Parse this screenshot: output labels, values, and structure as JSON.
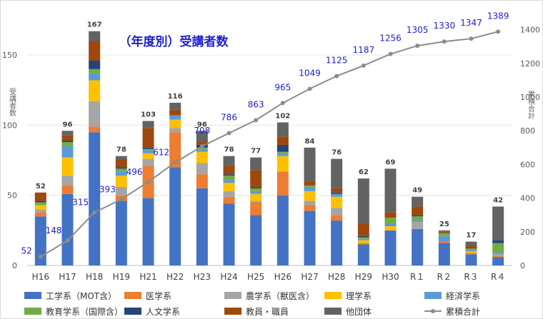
{
  "chart_data": {
    "type": "bar",
    "stacked": true,
    "title": "（年度別）受講者数",
    "ylabel": "受講者数",
    "y2label": "累積合計",
    "ylim": [
      0,
      175
    ],
    "y2lim": [
      0,
      1458
    ],
    "yticks": [
      0,
      50,
      100,
      150
    ],
    "y2ticks": [
      0,
      200,
      400,
      600,
      800,
      1000,
      1200,
      1400
    ],
    "categories": [
      "H16",
      "H17",
      "H18",
      "H19",
      "H21",
      "H22",
      "H23",
      "H24",
      "H25",
      "H26",
      "H27",
      "H28",
      "H29",
      "H30",
      "R１",
      "R２",
      "R３",
      "R４"
    ],
    "series": [
      {
        "name": "工学系（MOT含）",
        "color": "#4472c4",
        "values": [
          35,
          51,
          95,
          46,
          48,
          70,
          55,
          44,
          36,
          50,
          39,
          32,
          15,
          25,
          26,
          16,
          8,
          6
        ]
      },
      {
        "name": "医学系",
        "color": "#ed7d31",
        "values": [
          3,
          6,
          4,
          4,
          23,
          25,
          10,
          5,
          9,
          17,
          4,
          4,
          1,
          0,
          0,
          1,
          1,
          1
        ]
      },
      {
        "name": "農学系（獣医含）",
        "color": "#a5a5a5",
        "values": [
          2,
          7,
          18,
          6,
          5,
          3,
          8,
          4,
          1,
          0,
          3,
          5,
          0,
          0,
          5,
          0,
          0,
          1
        ]
      },
      {
        "name": "理学系",
        "color": "#ffc000",
        "values": [
          3,
          13,
          15,
          8,
          4,
          6,
          8,
          6,
          5,
          11,
          7,
          8,
          2,
          3,
          0,
          0,
          1,
          0
        ]
      },
      {
        "name": "経済学系",
        "color": "#5b9bd5",
        "values": [
          0,
          8,
          5,
          3,
          2,
          3,
          2,
          2,
          2,
          2,
          3,
          2,
          1,
          2,
          1,
          4,
          1,
          1
        ]
      },
      {
        "name": "教育学系（国際含）",
        "color": "#70ad47",
        "values": [
          2,
          3,
          3,
          2,
          1,
          0,
          1,
          3,
          2,
          1,
          1,
          0,
          1,
          4,
          3,
          2,
          1,
          7
        ]
      },
      {
        "name": "人文学系",
        "color": "#264478",
        "values": [
          1,
          1,
          6,
          1,
          1,
          0,
          2,
          1,
          1,
          5,
          0,
          1,
          1,
          0,
          1,
          0,
          0,
          2
        ]
      },
      {
        "name": "教員・職員",
        "color": "#9e480e",
        "values": [
          6,
          4,
          14,
          6,
          14,
          4,
          2,
          6,
          12,
          6,
          3,
          3,
          9,
          4,
          6,
          1,
          2,
          0
        ]
      },
      {
        "name": "他団体",
        "color": "#636363",
        "values": [
          0,
          3,
          7,
          2,
          5,
          5,
          8,
          7,
          9,
          10,
          24,
          21,
          32,
          31,
          7,
          1,
          3,
          24
        ]
      }
    ],
    "totals": [
      52,
      96,
      167,
      78,
      103,
      116,
      96,
      78,
      77,
      102,
      84,
      76,
      62,
      69,
      49,
      25,
      17,
      42
    ],
    "cumulative": {
      "name": "累積合計",
      "color": "#8c8c8c",
      "values": [
        52,
        148,
        315,
        393,
        496,
        612,
        708,
        786,
        863,
        965,
        1049,
        1125,
        1187,
        1256,
        1305,
        1330,
        1347,
        1389
      ]
    }
  }
}
